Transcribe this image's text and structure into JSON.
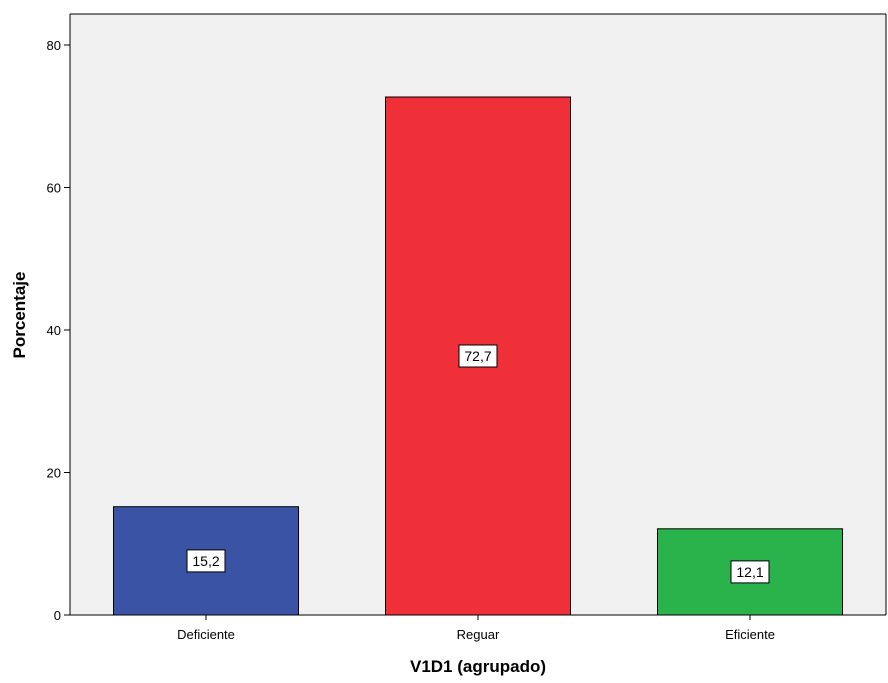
{
  "chart_data": {
    "type": "bar",
    "categories": [
      "Deficiente",
      "Reguar",
      "Eficiente"
    ],
    "values": [
      15.2,
      72.7,
      12.1
    ],
    "data_labels": [
      "15,2",
      "72,7",
      "12,1"
    ],
    "colors": [
      "#3a53a4",
      "#ef3038",
      "#2ab24b"
    ],
    "title": "",
    "xlabel": "V1D1 (agrupado)",
    "ylabel": "Porcentaje",
    "ylim": [
      0,
      80
    ],
    "yticks": [
      0,
      20,
      40,
      60,
      80
    ],
    "ytick_labels": [
      "0",
      "20",
      "40",
      "60",
      "80"
    ],
    "grid": false,
    "plot_background": "#f0f0f0"
  }
}
